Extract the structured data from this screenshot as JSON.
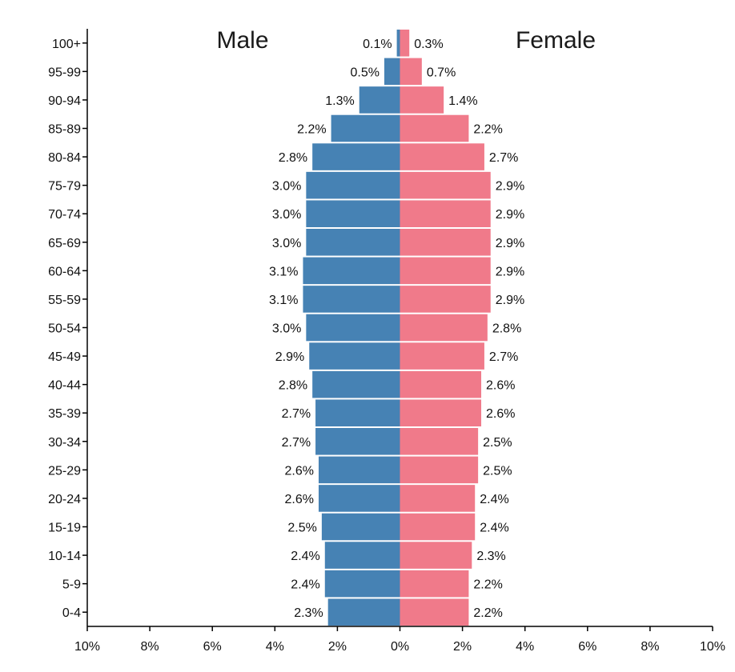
{
  "chart_data": {
    "type": "bar",
    "orientation": "horizontal-population-pyramid",
    "categories": [
      "100+",
      "95-99",
      "90-94",
      "85-89",
      "80-84",
      "75-79",
      "70-74",
      "65-69",
      "60-64",
      "55-59",
      "50-54",
      "45-49",
      "40-44",
      "35-39",
      "30-34",
      "25-29",
      "20-24",
      "15-19",
      "10-14",
      "5-9",
      "0-4"
    ],
    "series": [
      {
        "name": "Male",
        "color": "#4682b4",
        "values": [
          0.1,
          0.5,
          1.3,
          2.2,
          2.8,
          3.0,
          3.0,
          3.0,
          3.1,
          3.1,
          3.0,
          2.9,
          2.8,
          2.7,
          2.7,
          2.6,
          2.6,
          2.5,
          2.4,
          2.4,
          2.3
        ],
        "labels": [
          "0.1%",
          "0.5%",
          "1.3%",
          "2.2%",
          "2.8%",
          "3.0%",
          "3.0%",
          "3.0%",
          "3.1%",
          "3.1%",
          "3.0%",
          "2.9%",
          "2.8%",
          "2.7%",
          "2.7%",
          "2.6%",
          "2.6%",
          "2.5%",
          "2.4%",
          "2.4%",
          "2.3%"
        ]
      },
      {
        "name": "Female",
        "color": "#f07a8a",
        "values": [
          0.3,
          0.7,
          1.4,
          2.2,
          2.7,
          2.9,
          2.9,
          2.9,
          2.9,
          2.9,
          2.8,
          2.7,
          2.6,
          2.6,
          2.5,
          2.5,
          2.4,
          2.4,
          2.3,
          2.2,
          2.2
        ],
        "labels": [
          "0.3%",
          "0.7%",
          "1.4%",
          "2.2%",
          "2.7%",
          "2.9%",
          "2.9%",
          "2.9%",
          "2.9%",
          "2.9%",
          "2.8%",
          "2.7%",
          "2.6%",
          "2.6%",
          "2.5%",
          "2.5%",
          "2.4%",
          "2.4%",
          "2.3%",
          "2.2%",
          "2.2%"
        ]
      }
    ],
    "xlim": [
      -10,
      10
    ],
    "x_ticks": [
      -10,
      -8,
      -6,
      -4,
      -2,
      0,
      2,
      4,
      6,
      8,
      10
    ],
    "x_tick_labels": [
      "10%",
      "8%",
      "6%",
      "4%",
      "2%",
      "0%",
      "2%",
      "4%",
      "6%",
      "8%",
      "10%"
    ],
    "grid": false,
    "title": "",
    "xlabel": "",
    "ylabel": ""
  }
}
